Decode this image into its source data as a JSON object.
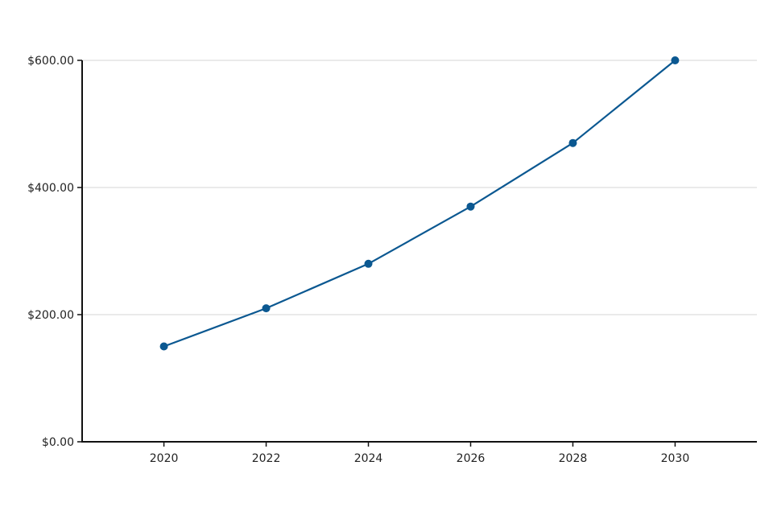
{
  "chart_data": {
    "type": "line",
    "title": "",
    "xlabel": "",
    "ylabel": "",
    "x": [
      2020,
      2022,
      2024,
      2026,
      2028,
      2030
    ],
    "series": [
      {
        "values": [
          150,
          210,
          280,
          370,
          470,
          600
        ],
        "color": "#0b5891"
      }
    ],
    "x_ticks": [
      "2020",
      "2022",
      "2024",
      "2026",
      "2028",
      "2030"
    ],
    "y_ticks": [
      0,
      200,
      400,
      600
    ],
    "y_tick_labels": [
      "$0.00",
      "$200.00",
      "$400.00",
      "$600.00"
    ],
    "xlim": [
      2018.4,
      2031.6
    ],
    "ylim": [
      0,
      600
    ],
    "grid": "horizontal",
    "legend": "none"
  }
}
